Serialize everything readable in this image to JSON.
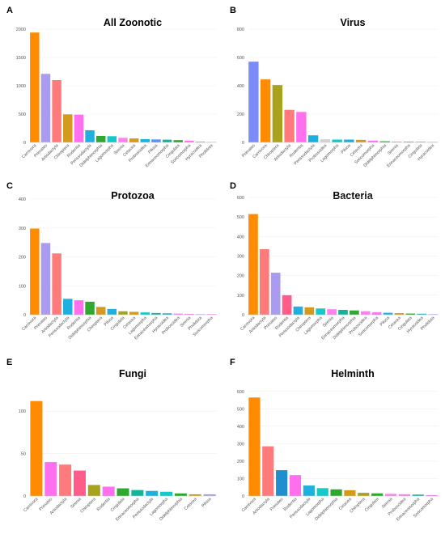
{
  "chart_data": [
    {
      "letter": "A",
      "title": "All Zoonotic",
      "type": "bar",
      "ylim": [
        0,
        2000
      ],
      "yticks": [
        0,
        500,
        1000,
        1500,
        2000
      ],
      "categories": [
        "Carnivora",
        "Primates",
        "Artiodactyla",
        "Chiroptera",
        "Rodentia",
        "Perissodactyla",
        "Didelphimorphia",
        "Lagomorpha",
        "Sirenia",
        "Cetacea",
        "Proboscidea",
        "Pilosa",
        "Erinaceomorpha",
        "Cingulata",
        "Soricomorpha",
        "Hyracoidea",
        "Pholidota"
      ],
      "values": [
        1940,
        1210,
        1100,
        495,
        490,
        215,
        115,
        110,
        80,
        70,
        58,
        52,
        48,
        40,
        30,
        12,
        8
      ],
      "colors": [
        "#ff8c00",
        "#a99cf0",
        "#ff7a7a",
        "#d39a1e",
        "#ff6fee",
        "#1fb0df",
        "#2ea82e",
        "#13c9c9",
        "#ff7ff0",
        "#d39a1e",
        "#1fb0df",
        "#5b8ff9",
        "#16b39a",
        "#2ea82e",
        "#ff6fee",
        "#1fb0df",
        "#a99cf0"
      ],
      "grid": true,
      "legend": "none"
    },
    {
      "letter": "B",
      "title": "Virus",
      "type": "bar",
      "ylim": [
        0,
        800
      ],
      "yticks": [
        0,
        200,
        400,
        600,
        800
      ],
      "categories": [
        "Primates",
        "Carnivora",
        "Chiroptera",
        "Artiodactyla",
        "Rodentia",
        "Perissodactyla",
        "Proboscidea",
        "Lagomorpha",
        "Pilosa",
        "Cetacea",
        "Soricomorpha",
        "Didelphimorphia",
        "Sirenia",
        "Erinaceomorpha",
        "Cingulata",
        "Hyracoidea"
      ],
      "values": [
        570,
        445,
        405,
        230,
        215,
        50,
        22,
        20,
        20,
        18,
        12,
        8,
        6,
        5,
        4,
        3
      ],
      "colors": [
        "#7c8cf6",
        "#ff8c00",
        "#a8a21c",
        "#ff7a7a",
        "#ff6fee",
        "#1fb0df",
        "#d3d3d3",
        "#13c9c9",
        "#1fb0df",
        "#d39a1e",
        "#ff6fee",
        "#2ea82e",
        "#ff7ff0",
        "#16b39a",
        "#2ea82e",
        "#1fb0df"
      ],
      "grid": true,
      "legend": "none"
    },
    {
      "letter": "C",
      "title": "Protozoa",
      "type": "bar",
      "ylim": [
        0,
        400
      ],
      "yticks": [
        0,
        100,
        200,
        300,
        400
      ],
      "categories": [
        "Carnivora",
        "Primates",
        "Artiodactyla",
        "Perissodactyla",
        "Rodentia",
        "Didelphimorphia",
        "Chiroptera",
        "Pilosa",
        "Cingulata",
        "Cetacea",
        "Lagomorpha",
        "Erinaceomorpha",
        "Hyracoidea",
        "Proboscidea",
        "Sirenia",
        "Pholidota",
        "Soricomorpha"
      ],
      "values": [
        298,
        248,
        212,
        55,
        50,
        45,
        27,
        20,
        12,
        10,
        8,
        6,
        5,
        4,
        3,
        2,
        2
      ],
      "colors": [
        "#ff8c00",
        "#a99cf0",
        "#ff7a7a",
        "#1fb0df",
        "#ff6fee",
        "#2ea82e",
        "#d39a1e",
        "#1fb0df",
        "#a8a21c",
        "#d39a1e",
        "#13c9c9",
        "#16b39a",
        "#1fb0df",
        "#ff7ff0",
        "#ff7ff0",
        "#a99cf0",
        "#ff6fee"
      ],
      "grid": true,
      "legend": "none"
    },
    {
      "letter": "D",
      "title": "Bacteria",
      "type": "bar",
      "ylim": [
        0,
        600
      ],
      "yticks": [
        0,
        100,
        200,
        300,
        400,
        500,
        600
      ],
      "categories": [
        "Carnivora",
        "Artiodactyla",
        "Primates",
        "Rodentia",
        "Perissodactyla",
        "Chiroptera",
        "Lagomorpha",
        "Sirenia",
        "Erinaceomorpha",
        "Didelphimorphia",
        "Proboscidea",
        "Soricomorpha",
        "Pilosa",
        "Cetacea",
        "Cingulata",
        "Hyracoidea",
        "Pholidota"
      ],
      "values": [
        515,
        335,
        215,
        100,
        42,
        38,
        32,
        28,
        25,
        22,
        18,
        12,
        10,
        8,
        6,
        5,
        3
      ],
      "colors": [
        "#ff8c00",
        "#ff7a7a",
        "#a99cf0",
        "#ff5c8a",
        "#1fb0df",
        "#d39a1e",
        "#13c9c9",
        "#ff7ff0",
        "#16b39a",
        "#2ea82e",
        "#ff7ff0",
        "#ff6fee",
        "#1fb0df",
        "#d39a1e",
        "#2ea82e",
        "#1fb0df",
        "#a99cf0"
      ],
      "grid": true,
      "legend": "none"
    },
    {
      "letter": "E",
      "title": "Fungi",
      "type": "bar",
      "ylim": [
        0,
        125
      ],
      "yticks": [
        0,
        50,
        100
      ],
      "categories": [
        "Carnivora",
        "Primates",
        "Artiodactyla",
        "Sirenia",
        "Chiroptera",
        "Rodentia",
        "Cingulata",
        "Erinaceomorpha",
        "Perissodactyla",
        "Lagomorpha",
        "Didelphimorphia",
        "Cetacea",
        "Pilosa"
      ],
      "values": [
        112,
        40,
        37,
        30,
        13,
        11,
        9,
        7,
        6,
        5,
        3,
        2,
        2
      ],
      "colors": [
        "#ff8c00",
        "#ff6fee",
        "#ff7a7a",
        "#ff5c8a",
        "#a8a21c",
        "#ff6fee",
        "#2ea82e",
        "#16b39a",
        "#1fb0df",
        "#13c9c9",
        "#2ea82e",
        "#d39a1e",
        "#a99cf0"
      ],
      "grid": true,
      "legend": "none"
    },
    {
      "letter": "F",
      "title": "Helminth",
      "type": "bar",
      "ylim": [
        0,
        650
      ],
      "yticks": [
        0,
        100,
        200,
        300,
        400,
        500,
        600
      ],
      "categories": [
        "Carnivora",
        "Artiodactyla",
        "Primates",
        "Rodentia",
        "Perissodactyla",
        "Lagomorpha",
        "Didelphimorphia",
        "Cetacea",
        "Chiroptera",
        "Cingulata",
        "Sirenia",
        "Proboscidea",
        "Erinaceomorpha",
        "Soricomorpha"
      ],
      "values": [
        565,
        285,
        148,
        120,
        60,
        45,
        38,
        33,
        18,
        15,
        12,
        10,
        8,
        5
      ],
      "colors": [
        "#ff8c00",
        "#ff7a7a",
        "#1f8fd0",
        "#ff6fee",
        "#1fb0df",
        "#13c9c9",
        "#2ea82e",
        "#d39a1e",
        "#a8a21c",
        "#2ea82e",
        "#ff7ff0",
        "#ff7ff0",
        "#16b39a",
        "#ff6fee"
      ],
      "grid": true,
      "legend": "none"
    }
  ]
}
